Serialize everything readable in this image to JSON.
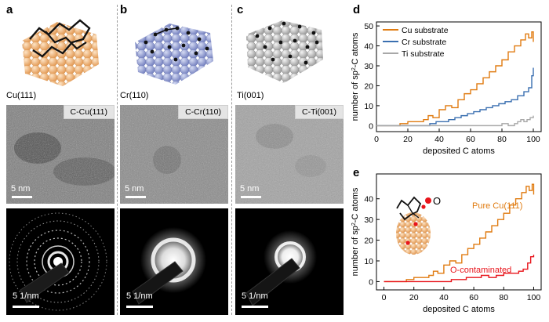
{
  "panels": {
    "a": {
      "letter": "a",
      "surface": "Cu(111)",
      "tem_label": "C-Cu(111)",
      "tem_scale": "5 nm",
      "saed_scale": "5 1/nm",
      "color": "#f3b87e"
    },
    "b": {
      "letter": "b",
      "surface": "Cr(110)",
      "tem_label": "C-Cr(110)",
      "tem_scale": "5 nm",
      "saed_scale": "5 1/nm",
      "color": "#8c97cf"
    },
    "c": {
      "letter": "c",
      "surface": "Ti(001)",
      "tem_label": "C-Ti(001)",
      "tem_scale": "5 nm",
      "saed_scale": "5 1/nm",
      "color": "#c4c4c4"
    },
    "d": {
      "letter": "d"
    },
    "e": {
      "letter": "e"
    }
  },
  "chart_data": [
    {
      "type": "line",
      "title": "",
      "xlabel": "deposited C atoms",
      "ylabel_parts": [
        "number of sp",
        "2",
        "-C atoms"
      ],
      "xlim": [
        0,
        105
      ],
      "ylim": [
        -3,
        52
      ],
      "xticks": [
        0,
        20,
        40,
        60,
        80,
        100
      ],
      "yticks": [
        0,
        10,
        20,
        30,
        40,
        50
      ],
      "legend_position": "top-left",
      "series": [
        {
          "name": "Cu substrate",
          "color": "#e07b10",
          "x": [
            0,
            15,
            20,
            25,
            30,
            33,
            36,
            40,
            44,
            48,
            52,
            56,
            60,
            64,
            68,
            72,
            76,
            80,
            84,
            88,
            92,
            95,
            97,
            99,
            100
          ],
          "y": [
            0,
            1,
            2,
            2,
            3,
            5,
            4,
            8,
            10,
            9,
            13,
            16,
            18,
            21,
            24,
            27,
            30,
            33,
            37,
            40,
            43,
            46,
            44,
            47,
            42
          ]
        },
        {
          "name": "Cr substrate",
          "color": "#3a6fb0",
          "x": [
            0,
            30,
            34,
            38,
            42,
            46,
            50,
            54,
            58,
            62,
            66,
            70,
            74,
            78,
            82,
            86,
            90,
            94,
            97,
            99,
            100
          ],
          "y": [
            0,
            0,
            1,
            2,
            2,
            3,
            4,
            5,
            6,
            7,
            8,
            9,
            10,
            11,
            12,
            13,
            15,
            17,
            19,
            25,
            29
          ]
        },
        {
          "name": "Ti substrate",
          "color": "#a8a8a8",
          "x": [
            0,
            60,
            70,
            76,
            80,
            84,
            88,
            90,
            92,
            94,
            96,
            98,
            100
          ],
          "y": [
            0,
            0,
            0,
            0,
            1,
            0,
            1,
            2,
            3,
            2,
            3,
            4,
            5
          ]
        }
      ]
    },
    {
      "type": "line",
      "title": "",
      "xlabel": "deposited C atoms",
      "ylabel_parts": [
        "number of sp",
        "2",
        "-C atoms"
      ],
      "xlim": [
        -5,
        105
      ],
      "ylim": [
        -4,
        52
      ],
      "xticks": [
        0,
        20,
        40,
        60,
        80,
        100
      ],
      "yticks": [
        0,
        10,
        20,
        30,
        40
      ],
      "annotations": {
        "inset_atom": "O"
      },
      "series": [
        {
          "name": "Pure Cu(111)",
          "color": "#e07b10",
          "x": [
            0,
            15,
            20,
            25,
            30,
            33,
            36,
            40,
            44,
            48,
            52,
            56,
            60,
            64,
            68,
            72,
            76,
            80,
            84,
            88,
            92,
            95,
            97,
            99,
            100
          ],
          "y": [
            0,
            1,
            2,
            2,
            3,
            5,
            4,
            8,
            10,
            9,
            13,
            16,
            18,
            21,
            24,
            27,
            30,
            33,
            37,
            40,
            43,
            46,
            44,
            47,
            42
          ]
        },
        {
          "name": "O-contaminated",
          "color": "#e8141b",
          "x": [
            0,
            20,
            30,
            40,
            45,
            50,
            55,
            60,
            65,
            70,
            75,
            80,
            85,
            90,
            93,
            96,
            98,
            100
          ],
          "y": [
            0,
            0,
            0,
            0,
            1,
            1,
            2,
            2,
            3,
            2,
            3,
            4,
            4,
            5,
            6,
            9,
            12,
            13
          ]
        }
      ]
    }
  ]
}
